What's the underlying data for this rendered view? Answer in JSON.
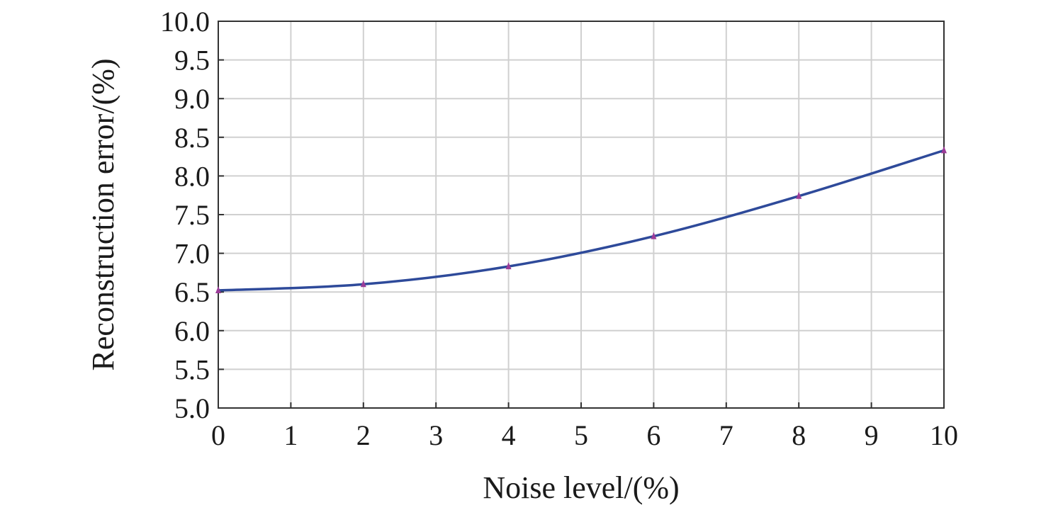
{
  "chart_data": {
    "type": "line",
    "title": "",
    "xlabel": "Noise level/(%)",
    "ylabel": "Reconstruction error/(%)",
    "xlim": [
      0,
      10
    ],
    "ylim": [
      5.0,
      10.0
    ],
    "x_ticks": [
      "0",
      "1",
      "2",
      "3",
      "4",
      "5",
      "6",
      "7",
      "8",
      "9",
      "10"
    ],
    "y_ticks": [
      "5.0",
      "5.5",
      "6.0",
      "6.5",
      "7.0",
      "7.5",
      "8.0",
      "8.5",
      "9.0",
      "9.5",
      "10.0"
    ],
    "grid": true,
    "series": [
      {
        "name": "Reconstruction error",
        "x": [
          0,
          2,
          4,
          6,
          8,
          10
        ],
        "values": [
          6.52,
          6.6,
          6.83,
          7.22,
          7.74,
          8.33
        ],
        "line_color": "#2e4a9a",
        "marker_color": "#9b3c98"
      }
    ]
  }
}
